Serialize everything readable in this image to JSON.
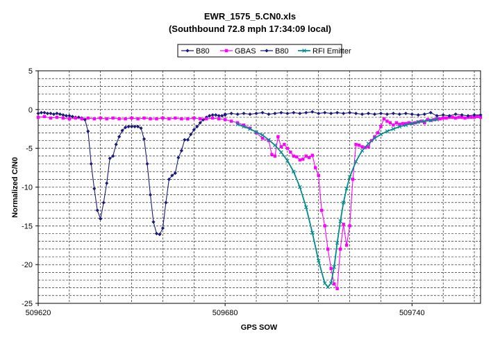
{
  "chart_data": {
    "type": "line",
    "title": "EWR_1575_5.CN0.xls",
    "subtitle": "(Southbound 72.8 mph 17:34:09 local)",
    "xlabel": "GPS SOW",
    "ylabel": "Normalized C/N0",
    "xlim": [
      509620,
      509762
    ],
    "ylim": [
      -25,
      5
    ],
    "x_ticks": [
      509620,
      509680,
      509740
    ],
    "y_ticks": [
      5,
      0,
      -5,
      -10,
      -15,
      -20,
      -25
    ],
    "x_tick_labels": [
      "509620",
      "509680",
      "509740"
    ],
    "y_tick_labels": [
      "5",
      "0",
      "-5",
      "-10",
      "-15",
      "-20",
      "-25"
    ],
    "grid": true,
    "legend_position": "top-center",
    "series": [
      {
        "name": "B80",
        "color": "#1a1a7a",
        "marker": "diamond",
        "x": [
          509620,
          509621,
          509622,
          509623,
          509624,
          509625,
          509626,
          509627,
          509628,
          509629,
          509630,
          509631,
          509632,
          509633,
          509634,
          509635,
          509636,
          509637,
          509638,
          509639,
          509640,
          509641,
          509642,
          509643,
          509644,
          509645,
          509646,
          509647,
          509648,
          509649,
          509650,
          509651,
          509652,
          509653,
          509654,
          509655,
          509656,
          509657,
          509658,
          509659,
          509660,
          509661,
          509662,
          509663,
          509664,
          509665,
          509666,
          509667,
          509668,
          509669,
          509670,
          509671,
          509672,
          509673,
          509674,
          509675,
          509676,
          509677,
          509678,
          509679,
          509680
        ],
        "y": [
          -0.5,
          -0.4,
          -0.4,
          -0.5,
          -0.5,
          -0.6,
          -0.5,
          -0.6,
          -0.7,
          -0.8,
          -0.8,
          -0.9,
          -1.0,
          -1.0,
          -1.1,
          -1.3,
          -2.8,
          -7.0,
          -10.2,
          -13.0,
          -14.1,
          -12.0,
          -9.5,
          -6.3,
          -6.0,
          -4.5,
          -3.5,
          -2.7,
          -2.3,
          -2.2,
          -2.2,
          -2.2,
          -2.2,
          -2.4,
          -3.8,
          -7.0,
          -11.0,
          -14.5,
          -16.0,
          -16.1,
          -15.3,
          -12.0,
          -9.0,
          -8.5,
          -8.2,
          -6.2,
          -5.3,
          -3.9,
          -3.9,
          -3.2,
          -2.6,
          -2.2,
          -1.7,
          -1.3,
          -1.0,
          -0.8,
          -0.7,
          -0.7,
          -0.8,
          -0.8,
          -0.7
        ]
      },
      {
        "name": "GBAS",
        "color": "#ff00ff",
        "marker": "square",
        "x": [
          509620,
          509622,
          509624,
          509626,
          509628,
          509630,
          509632,
          509634,
          509636,
          509638,
          509640,
          509642,
          509644,
          509646,
          509648,
          509650,
          509652,
          509654,
          509656,
          509658,
          509660,
          509662,
          509664,
          509666,
          509668,
          509670,
          509672,
          509674,
          509676,
          509678,
          509680,
          509682,
          509684,
          509686,
          509688,
          509690,
          509692,
          509694,
          509695,
          509696,
          509697,
          509698,
          509699,
          509700,
          509701,
          509702,
          509703,
          509704,
          509705,
          509706,
          509707,
          509708,
          509709,
          509710,
          509711,
          509712,
          509713,
          509714,
          509715,
          509716,
          509717,
          509718,
          509719,
          509720,
          509721,
          509722,
          509723,
          509724,
          509725,
          509726,
          509727,
          509728,
          509729,
          509730,
          509731,
          509732,
          509733,
          509734,
          509735,
          509736,
          509737,
          509738,
          509739,
          509740,
          509741,
          509742,
          509743,
          509744,
          509745,
          509746,
          509747,
          509748,
          509749,
          509750,
          509751,
          509752,
          509753,
          509754,
          509755,
          509756,
          509757,
          509758,
          509759,
          509760,
          509761,
          509762
        ],
        "y": [
          -1.0,
          -0.9,
          -1.1,
          -1.0,
          -1.1,
          -1.2,
          -1.1,
          -1.2,
          -1.1,
          -1.2,
          -1.1,
          -1.2,
          -1.1,
          -1.2,
          -1.2,
          -1.1,
          -1.2,
          -1.1,
          -1.2,
          -1.2,
          -1.1,
          -1.2,
          -1.1,
          -1.2,
          -1.2,
          -1.1,
          -1.2,
          -1.2,
          -1.1,
          -1.2,
          -1.3,
          -1.5,
          -1.7,
          -2.0,
          -2.4,
          -3.0,
          -3.7,
          -4.0,
          -5.8,
          -6.0,
          -3.5,
          -4.8,
          -4.5,
          -5.0,
          -5.5,
          -6.0,
          -6.1,
          -6.5,
          -6.4,
          -6.0,
          -6.2,
          -5.9,
          -7.5,
          -8.5,
          -13.0,
          -15.0,
          -18.0,
          -20.5,
          -22.5,
          -23.1,
          -18.0,
          -14.8,
          -17.5,
          -15.0,
          -9.0,
          -4.5,
          -4.6,
          -4.8,
          -4.9,
          -4.8,
          -4.0,
          -3.5,
          -3.0,
          -2.2,
          -1.2,
          -1.5,
          -1.7,
          -2.0,
          -1.7,
          -1.9,
          -1.8,
          -1.8,
          -1.7,
          -1.8,
          -1.7,
          -1.6,
          -1.5,
          -1.7,
          -1.3,
          -1.4,
          -1.3,
          -1.2,
          -1.2,
          -1.1,
          -1.1,
          -1.0,
          -1.0,
          -1.1,
          -1.0,
          -1.0,
          -1.1,
          -1.0,
          -1.0,
          -1.0,
          -0.9,
          -1.0
        ]
      },
      {
        "name": "B80",
        "color": "#1a1a7a",
        "marker": "diamond",
        "x": [
          509680,
          509682,
          509684,
          509686,
          509688,
          509690,
          509692,
          509694,
          509696,
          509698,
          509700,
          509702,
          509704,
          509706,
          509708,
          509710,
          509712,
          509714,
          509716,
          509718,
          509720,
          509722,
          509724,
          509726,
          509728,
          509730,
          509732,
          509734,
          509736,
          509738,
          509740,
          509742,
          509744,
          509746,
          509748,
          509750,
          509752,
          509754,
          509756,
          509758,
          509760,
          509762
        ],
        "y": [
          -0.6,
          -0.5,
          -0.6,
          -0.5,
          -0.6,
          -0.5,
          -0.4,
          -0.6,
          -0.5,
          -0.4,
          -0.5,
          -0.4,
          -0.5,
          -0.4,
          -0.3,
          -0.5,
          -0.4,
          -0.5,
          -0.4,
          -0.5,
          -0.4,
          -0.5,
          -0.6,
          -0.5,
          -0.6,
          -0.5,
          -0.6,
          -0.5,
          -0.6,
          -0.5,
          -0.6,
          -0.7,
          -0.6,
          -0.4,
          -0.8,
          -0.7,
          -0.8,
          -0.6,
          -0.7,
          -0.8,
          -0.7,
          -0.7
        ]
      },
      {
        "name": "RFI Emitter",
        "color": "#008b8b",
        "marker": "x",
        "x": [
          509684,
          509686,
          509688,
          509690,
          509692,
          509694,
          509696,
          509698,
          509700,
          509702,
          509704,
          509706,
          509708,
          509710,
          509712,
          509713,
          509714,
          509715,
          509716,
          509717,
          509718,
          509719,
          509720,
          509722,
          509724,
          509726,
          509728,
          509730,
          509732,
          509734,
          509736,
          509738,
          509740,
          509742,
          509744,
          509746,
          509748
        ],
        "y": [
          -1.9,
          -2.2,
          -2.5,
          -2.9,
          -3.3,
          -3.9,
          -4.6,
          -5.5,
          -6.6,
          -8.0,
          -10.0,
          -12.6,
          -15.9,
          -19.5,
          -22.4,
          -22.9,
          -22.4,
          -20.3,
          -17.2,
          -14.4,
          -12.0,
          -10.2,
          -8.7,
          -6.7,
          -5.3,
          -4.4,
          -3.7,
          -3.2,
          -2.8,
          -2.5,
          -2.2,
          -2.0,
          -1.8,
          -1.6,
          -1.5,
          -1.4,
          -1.3
        ]
      }
    ]
  }
}
